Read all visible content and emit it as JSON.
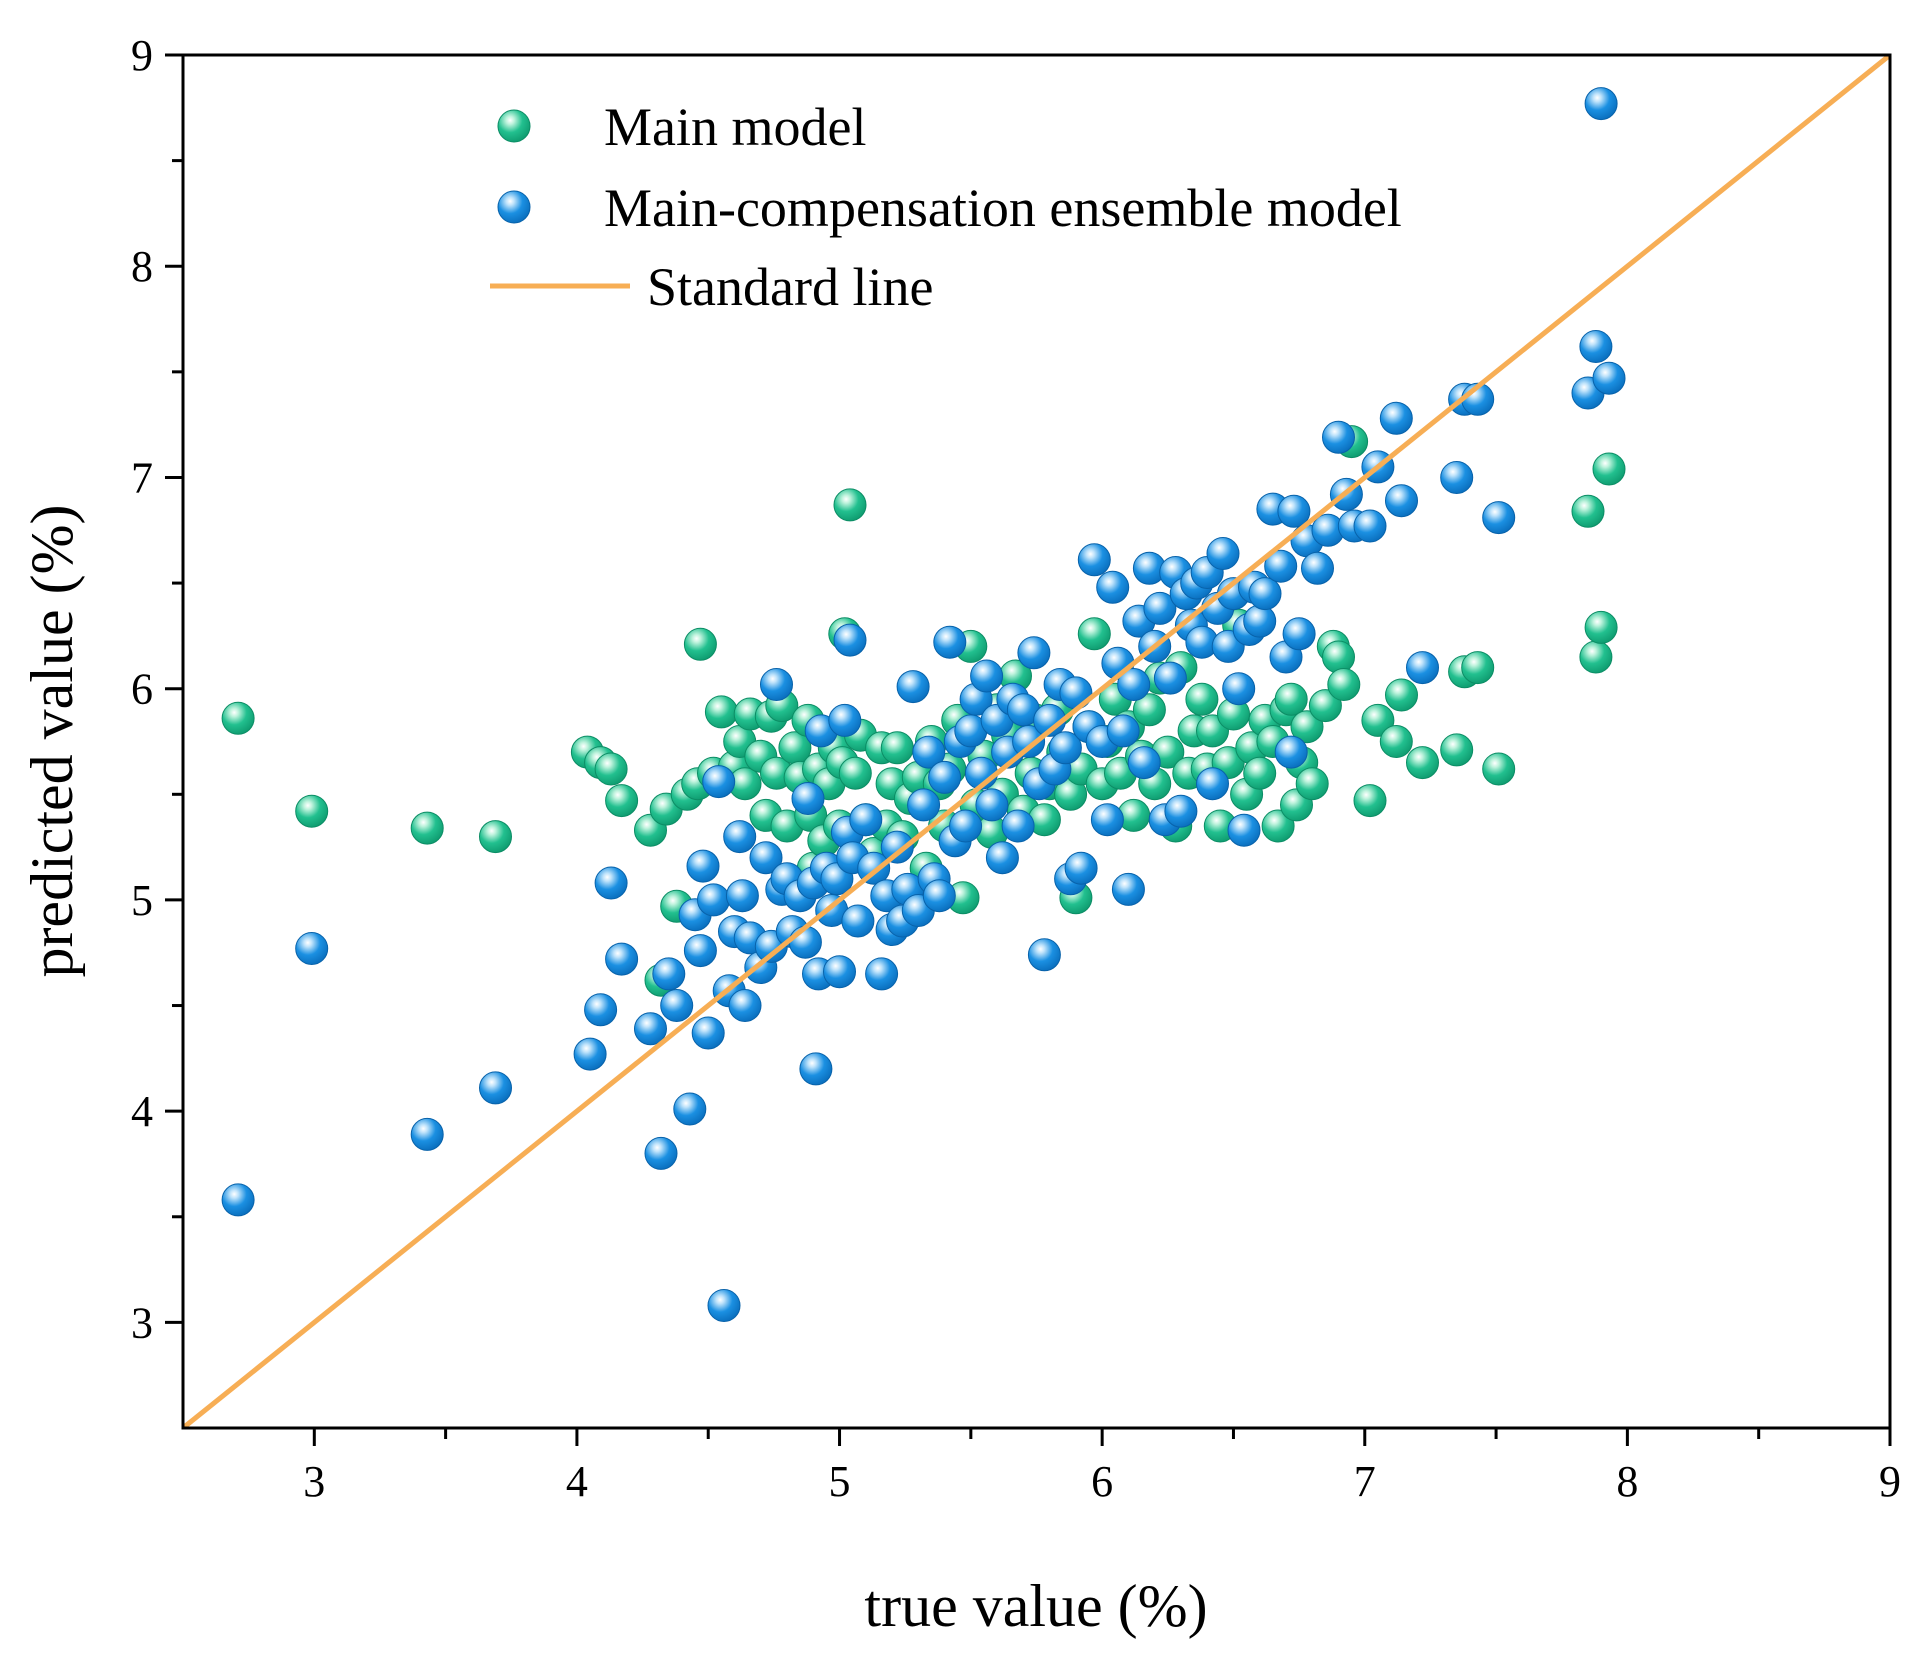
{
  "chart_data": {
    "type": "scatter",
    "title": "",
    "xlabel": "true value (%)",
    "ylabel": "predicted value (%)",
    "xlim": [
      2.5,
      9
    ],
    "ylim": [
      2.5,
      9
    ],
    "xticks": [
      "3",
      "4",
      "5",
      "6",
      "7",
      "8",
      "9"
    ],
    "yticks": [
      "3",
      "4",
      "5",
      "6",
      "7",
      "8",
      "9"
    ],
    "legend_position": "top-left",
    "grid": false,
    "colors": {
      "main": "#1fbd8c",
      "ensemble": "#1a8fe0",
      "standard": "#f7ae55"
    },
    "legend": [
      {
        "label": "Main model",
        "kind": "marker",
        "series": "main"
      },
      {
        "label": "Main-compensation ensemble model",
        "kind": "marker",
        "series": "ensemble"
      },
      {
        "label": "Standard line",
        "kind": "line",
        "series": "standard"
      }
    ],
    "standard_line": {
      "name": "Standard line",
      "points": [
        [
          2.5,
          2.5
        ],
        [
          9,
          9
        ]
      ]
    },
    "series": [
      {
        "name": "Main model",
        "key": "main",
        "points": [
          [
            2.71,
            5.86
          ],
          [
            2.99,
            5.42
          ],
          [
            3.43,
            5.34
          ],
          [
            3.69,
            5.3
          ],
          [
            4.04,
            5.7
          ],
          [
            4.09,
            5.65
          ],
          [
            4.13,
            5.62
          ],
          [
            4.17,
            5.47
          ],
          [
            4.28,
            5.33
          ],
          [
            4.34,
            5.43
          ],
          [
            4.32,
            4.62
          ],
          [
            4.38,
            4.97
          ],
          [
            4.42,
            5.5
          ],
          [
            4.46,
            5.55
          ],
          [
            4.47,
            6.21
          ],
          [
            4.52,
            5.6
          ],
          [
            4.55,
            5.89
          ],
          [
            4.6,
            5.63
          ],
          [
            4.62,
            5.75
          ],
          [
            4.64,
            5.55
          ],
          [
            4.66,
            5.88
          ],
          [
            4.7,
            5.68
          ],
          [
            4.72,
            5.4
          ],
          [
            4.74,
            5.87
          ],
          [
            4.76,
            5.6
          ],
          [
            4.78,
            5.92
          ],
          [
            4.8,
            5.35
          ],
          [
            4.83,
            5.72
          ],
          [
            4.85,
            5.58
          ],
          [
            4.88,
            5.85
          ],
          [
            4.89,
            5.4
          ],
          [
            4.9,
            5.15
          ],
          [
            4.92,
            5.62
          ],
          [
            4.94,
            5.28
          ],
          [
            4.96,
            5.55
          ],
          [
            4.98,
            5.72
          ],
          [
            5.0,
            5.35
          ],
          [
            5.01,
            5.65
          ],
          [
            5.02,
            6.26
          ],
          [
            5.04,
            6.87
          ],
          [
            5.06,
            5.6
          ],
          [
            5.08,
            5.78
          ],
          [
            5.1,
            5.38
          ],
          [
            5.13,
            5.22
          ],
          [
            5.16,
            5.72
          ],
          [
            5.18,
            5.35
          ],
          [
            5.2,
            5.55
          ],
          [
            5.22,
            5.72
          ],
          [
            5.24,
            5.3
          ],
          [
            5.27,
            5.48
          ],
          [
            5.3,
            5.58
          ],
          [
            5.33,
            5.15
          ],
          [
            5.35,
            5.75
          ],
          [
            5.38,
            5.55
          ],
          [
            5.4,
            5.35
          ],
          [
            5.42,
            5.62
          ],
          [
            5.45,
            5.85
          ],
          [
            5.47,
            5.01
          ],
          [
            5.5,
            6.2
          ],
          [
            5.52,
            5.45
          ],
          [
            5.55,
            5.68
          ],
          [
            5.58,
            5.32
          ],
          [
            5.6,
            5.9
          ],
          [
            5.62,
            5.5
          ],
          [
            5.64,
            5.78
          ],
          [
            5.67,
            6.06
          ],
          [
            5.7,
            5.42
          ],
          [
            5.73,
            5.6
          ],
          [
            5.75,
            5.85
          ],
          [
            5.78,
            5.38
          ],
          [
            5.8,
            5.55
          ],
          [
            5.83,
            5.9
          ],
          [
            5.85,
            5.7
          ],
          [
            5.88,
            5.5
          ],
          [
            5.9,
            5.01
          ],
          [
            5.92,
            5.62
          ],
          [
            5.95,
            5.82
          ],
          [
            5.97,
            6.26
          ],
          [
            6.0,
            5.55
          ],
          [
            6.02,
            5.75
          ],
          [
            6.05,
            5.95
          ],
          [
            6.07,
            5.6
          ],
          [
            6.1,
            5.82
          ],
          [
            6.12,
            5.4
          ],
          [
            6.15,
            5.68
          ],
          [
            6.18,
            5.9
          ],
          [
            6.2,
            5.55
          ],
          [
            6.22,
            6.05
          ],
          [
            6.25,
            5.7
          ],
          [
            6.28,
            5.35
          ],
          [
            6.3,
            6.1
          ],
          [
            6.33,
            5.6
          ],
          [
            6.35,
            5.8
          ],
          [
            6.38,
            5.95
          ],
          [
            6.4,
            5.62
          ],
          [
            6.42,
            5.8
          ],
          [
            6.45,
            5.35
          ],
          [
            6.48,
            5.65
          ],
          [
            6.5,
            5.88
          ],
          [
            6.52,
            6.3
          ],
          [
            6.55,
            5.5
          ],
          [
            6.57,
            5.72
          ],
          [
            6.6,
            5.6
          ],
          [
            6.62,
            5.85
          ],
          [
            6.65,
            5.75
          ],
          [
            6.67,
            5.35
          ],
          [
            6.7,
            5.9
          ],
          [
            6.72,
            5.95
          ],
          [
            6.74,
            5.45
          ],
          [
            6.76,
            5.65
          ],
          [
            6.78,
            5.82
          ],
          [
            6.8,
            5.55
          ],
          [
            6.85,
            5.92
          ],
          [
            6.88,
            6.2
          ],
          [
            6.9,
            6.15
          ],
          [
            6.92,
            6.02
          ],
          [
            6.95,
            7.17
          ],
          [
            7.02,
            5.47
          ],
          [
            7.05,
            5.85
          ],
          [
            7.12,
            5.75
          ],
          [
            7.14,
            5.97
          ],
          [
            7.22,
            5.65
          ],
          [
            7.35,
            5.71
          ],
          [
            7.38,
            6.08
          ],
          [
            7.43,
            6.1
          ],
          [
            7.51,
            5.62
          ],
          [
            7.85,
            6.84
          ],
          [
            7.88,
            6.15
          ],
          [
            7.9,
            6.29
          ],
          [
            7.93,
            7.04
          ]
        ]
      },
      {
        "name": "Main-compensation ensemble model",
        "key": "ensemble",
        "points": [
          [
            2.71,
            3.58
          ],
          [
            2.99,
            4.77
          ],
          [
            3.43,
            3.89
          ],
          [
            3.69,
            4.11
          ],
          [
            4.05,
            4.27
          ],
          [
            4.09,
            4.48
          ],
          [
            4.13,
            5.08
          ],
          [
            4.17,
            4.72
          ],
          [
            4.28,
            4.39
          ],
          [
            4.32,
            3.8
          ],
          [
            4.35,
            4.65
          ],
          [
            4.38,
            4.5
          ],
          [
            4.43,
            4.01
          ],
          [
            4.45,
            4.93
          ],
          [
            4.47,
            4.76
          ],
          [
            4.48,
            5.16
          ],
          [
            4.5,
            4.37
          ],
          [
            4.52,
            5.0
          ],
          [
            4.54,
            5.56
          ],
          [
            4.56,
            3.08
          ],
          [
            4.58,
            4.57
          ],
          [
            4.6,
            4.85
          ],
          [
            4.62,
            5.3
          ],
          [
            4.63,
            5.02
          ],
          [
            4.64,
            4.5
          ],
          [
            4.66,
            4.82
          ],
          [
            4.7,
            4.68
          ],
          [
            4.72,
            5.2
          ],
          [
            4.74,
            4.78
          ],
          [
            4.76,
            6.02
          ],
          [
            4.78,
            5.05
          ],
          [
            4.8,
            5.1
          ],
          [
            4.82,
            4.85
          ],
          [
            4.85,
            5.02
          ],
          [
            4.87,
            4.8
          ],
          [
            4.88,
            5.48
          ],
          [
            4.9,
            5.08
          ],
          [
            4.91,
            4.2
          ],
          [
            4.92,
            4.65
          ],
          [
            4.93,
            5.8
          ],
          [
            4.95,
            5.15
          ],
          [
            4.97,
            4.95
          ],
          [
            4.99,
            5.1
          ],
          [
            5.0,
            4.66
          ],
          [
            5.02,
            5.85
          ],
          [
            5.03,
            5.32
          ],
          [
            5.04,
            6.23
          ],
          [
            5.05,
            5.2
          ],
          [
            5.07,
            4.9
          ],
          [
            5.1,
            5.38
          ],
          [
            5.13,
            5.15
          ],
          [
            5.16,
            4.65
          ],
          [
            5.18,
            5.02
          ],
          [
            5.2,
            4.86
          ],
          [
            5.22,
            5.25
          ],
          [
            5.24,
            4.9
          ],
          [
            5.26,
            5.05
          ],
          [
            5.28,
            6.01
          ],
          [
            5.3,
            4.95
          ],
          [
            5.32,
            5.45
          ],
          [
            5.34,
            5.7
          ],
          [
            5.36,
            5.1
          ],
          [
            5.38,
            5.02
          ],
          [
            5.4,
            5.58
          ],
          [
            5.42,
            6.22
          ],
          [
            5.44,
            5.28
          ],
          [
            5.46,
            5.75
          ],
          [
            5.48,
            5.35
          ],
          [
            5.5,
            5.8
          ],
          [
            5.52,
            5.95
          ],
          [
            5.54,
            5.6
          ],
          [
            5.56,
            6.06
          ],
          [
            5.58,
            5.45
          ],
          [
            5.6,
            5.85
          ],
          [
            5.62,
            5.2
          ],
          [
            5.64,
            5.7
          ],
          [
            5.66,
            5.95
          ],
          [
            5.68,
            5.35
          ],
          [
            5.7,
            5.9
          ],
          [
            5.72,
            5.75
          ],
          [
            5.74,
            6.17
          ],
          [
            5.76,
            5.55
          ],
          [
            5.78,
            4.74
          ],
          [
            5.8,
            5.85
          ],
          [
            5.82,
            5.62
          ],
          [
            5.84,
            6.02
          ],
          [
            5.86,
            5.72
          ],
          [
            5.88,
            5.1
          ],
          [
            5.9,
            5.98
          ],
          [
            5.92,
            5.15
          ],
          [
            5.95,
            5.82
          ],
          [
            5.97,
            6.61
          ],
          [
            6.0,
            5.75
          ],
          [
            6.02,
            5.38
          ],
          [
            6.04,
            6.48
          ],
          [
            6.06,
            6.12
          ],
          [
            6.08,
            5.8
          ],
          [
            6.1,
            5.05
          ],
          [
            6.12,
            6.02
          ],
          [
            6.14,
            6.32
          ],
          [
            6.16,
            5.65
          ],
          [
            6.18,
            6.57
          ],
          [
            6.2,
            6.2
          ],
          [
            6.22,
            6.38
          ],
          [
            6.24,
            5.38
          ],
          [
            6.26,
            6.05
          ],
          [
            6.28,
            6.55
          ],
          [
            6.3,
            5.42
          ],
          [
            6.32,
            6.45
          ],
          [
            6.34,
            6.3
          ],
          [
            6.36,
            6.5
          ],
          [
            6.38,
            6.22
          ],
          [
            6.4,
            6.55
          ],
          [
            6.42,
            5.55
          ],
          [
            6.44,
            6.38
          ],
          [
            6.46,
            6.64
          ],
          [
            6.48,
            6.2
          ],
          [
            6.5,
            6.45
          ],
          [
            6.52,
            6.0
          ],
          [
            6.54,
            5.33
          ],
          [
            6.56,
            6.28
          ],
          [
            6.58,
            6.48
          ],
          [
            6.6,
            6.32
          ],
          [
            6.62,
            6.45
          ],
          [
            6.65,
            6.85
          ],
          [
            6.68,
            6.58
          ],
          [
            6.7,
            6.15
          ],
          [
            6.72,
            5.7
          ],
          [
            6.73,
            6.84
          ],
          [
            6.75,
            6.26
          ],
          [
            6.78,
            6.7
          ],
          [
            6.82,
            6.57
          ],
          [
            6.86,
            6.75
          ],
          [
            6.9,
            7.19
          ],
          [
            6.93,
            6.92
          ],
          [
            6.96,
            6.77
          ],
          [
            7.02,
            6.77
          ],
          [
            7.05,
            7.05
          ],
          [
            7.12,
            7.28
          ],
          [
            7.14,
            6.89
          ],
          [
            7.22,
            6.1
          ],
          [
            7.35,
            7.0
          ],
          [
            7.38,
            7.37
          ],
          [
            7.43,
            7.37
          ],
          [
            7.51,
            6.81
          ],
          [
            7.85,
            7.4
          ],
          [
            7.88,
            7.62
          ],
          [
            7.9,
            8.77
          ],
          [
            7.93,
            7.47
          ]
        ]
      }
    ]
  }
}
